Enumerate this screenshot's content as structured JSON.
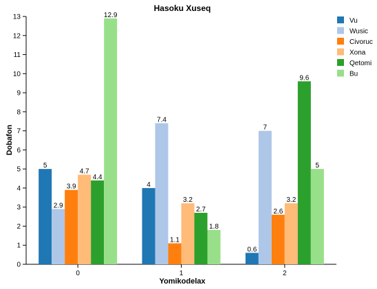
{
  "chart_data": {
    "type": "bar",
    "title": "Hasoku Xuseq",
    "xlabel": "Yomikodelax",
    "ylabel": "Dobafon",
    "categories": [
      "0",
      "1",
      "2"
    ],
    "ylim": [
      0,
      13
    ],
    "yticks": [
      0,
      1,
      2,
      3,
      4,
      5,
      6,
      7,
      8,
      9,
      10,
      11,
      12,
      13
    ],
    "grid": false,
    "legend_position": "top-right",
    "series": [
      {
        "name": "Vu",
        "color": "#1f77b4",
        "values": [
          5,
          4,
          0.6
        ]
      },
      {
        "name": "Wusic",
        "color": "#aec7e8",
        "values": [
          2.9,
          7.4,
          7
        ]
      },
      {
        "name": "Civoruc",
        "color": "#ff7f0e",
        "values": [
          3.9,
          1.1,
          2.6
        ]
      },
      {
        "name": "Xona",
        "color": "#ffbb78",
        "values": [
          4.7,
          3.2,
          3.2
        ]
      },
      {
        "name": "Qetomi",
        "color": "#2ca02c",
        "values": [
          4.4,
          2.7,
          9.6
        ]
      },
      {
        "name": "Bu",
        "color": "#98df8a",
        "values": [
          12.9,
          1.8,
          5
        ]
      }
    ]
  }
}
